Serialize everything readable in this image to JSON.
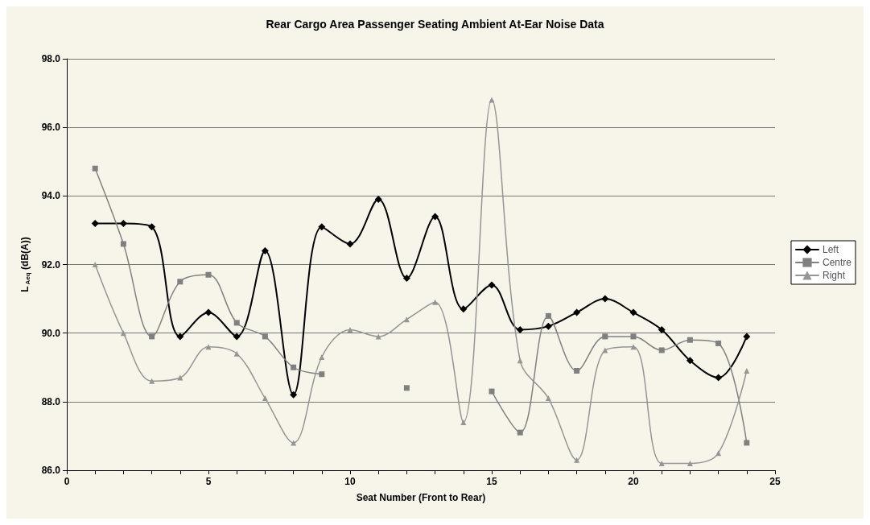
{
  "chart_data": {
    "type": "line",
    "title": "Rear Cargo Area Passenger Seating Ambient At-Ear Noise Data",
    "xlabel": "Seat Number (Front to Rear)",
    "ylabel": "L$_{Aeq}$ (dB(A))",
    "x": [
      1,
      2,
      3,
      4,
      5,
      6,
      7,
      8,
      9,
      10,
      11,
      12,
      13,
      14,
      15,
      16,
      17,
      18,
      19,
      20,
      21,
      22,
      23,
      24
    ],
    "series": [
      {
        "name": "Left",
        "color": "#000000",
        "marker": "diamond",
        "values": [
          93.2,
          93.2,
          93.1,
          89.9,
          90.6,
          89.9,
          92.4,
          88.2,
          93.1,
          92.6,
          93.9,
          91.6,
          93.4,
          90.7,
          91.4,
          90.1,
          90.2,
          90.6,
          91.0,
          90.6,
          90.1,
          89.2,
          88.7,
          89.9
        ]
      },
      {
        "name": "Centre",
        "color": "#808080",
        "marker": "square",
        "values": [
          94.8,
          92.6,
          89.9,
          91.5,
          91.7,
          90.3,
          89.9,
          89.0,
          88.8,
          null,
          null,
          88.4,
          null,
          null,
          88.3,
          87.1,
          90.5,
          88.9,
          89.9,
          89.9,
          89.5,
          89.8,
          89.7,
          86.8
        ]
      },
      {
        "name": "Right",
        "color": "#959595",
        "marker": "triangle",
        "values": [
          92.0,
          90.0,
          88.6,
          88.7,
          89.6,
          89.4,
          88.1,
          86.8,
          89.3,
          90.1,
          89.9,
          90.4,
          90.9,
          87.4,
          96.8,
          89.2,
          88.1,
          86.3,
          89.5,
          89.6,
          86.2,
          86.2,
          86.5,
          88.9
        ]
      }
    ],
    "xlim": [
      0,
      25
    ],
    "xticks": [
      0,
      5,
      10,
      15,
      20,
      25
    ],
    "ylim": [
      86,
      98
    ],
    "yticks": [
      {
        "value": 86,
        "label": "86.0"
      },
      {
        "value": 88,
        "label": "88.0"
      },
      {
        "value": 90,
        "label": "90.0"
      },
      {
        "value": 92,
        "label": "92.0"
      },
      {
        "value": 94,
        "label": "94.0"
      },
      {
        "value": 96,
        "label": "96.0"
      },
      {
        "value": 98,
        "label": "98.0"
      }
    ],
    "grid": "y",
    "legend": "right",
    "line_style": "solid"
  }
}
